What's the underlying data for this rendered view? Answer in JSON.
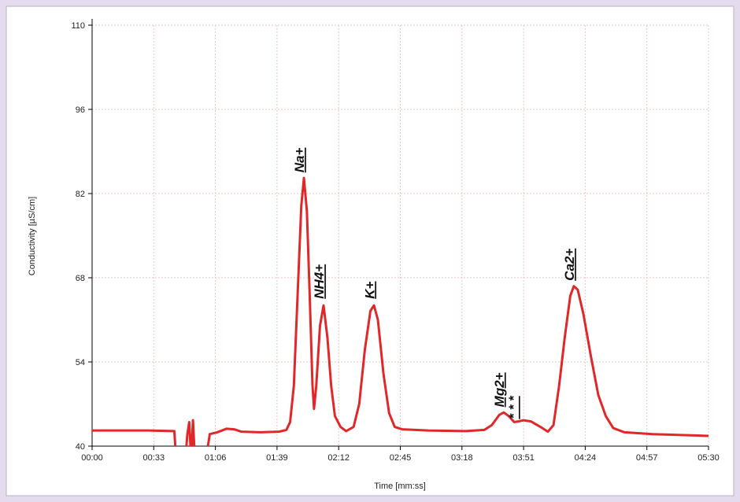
{
  "chart_data": {
    "type": "line",
    "x_label": "Time [mm:ss]",
    "y_label": "Conductivity [µS/cm]",
    "xlim": [
      0,
      330
    ],
    "ylim": [
      40,
      110
    ],
    "xticks": [
      {
        "value": 0,
        "label": "00:00"
      },
      {
        "value": 33,
        "label": "00:33"
      },
      {
        "value": 66,
        "label": "01:06"
      },
      {
        "value": 99,
        "label": "01:39"
      },
      {
        "value": 132,
        "label": "02:12"
      },
      {
        "value": 165,
        "label": "02:45"
      },
      {
        "value": 198,
        "label": "03:18"
      },
      {
        "value": 231,
        "label": "03:51"
      },
      {
        "value": 264,
        "label": "04:24"
      },
      {
        "value": 297,
        "label": "04:57"
      },
      {
        "value": 330,
        "label": "05:30"
      }
    ],
    "yticks": [
      40,
      54,
      68,
      82,
      96,
      110
    ],
    "grid": true,
    "x": [
      0,
      30,
      44,
      45,
      50,
      51,
      52,
      53,
      54,
      55,
      61,
      63,
      67,
      72,
      76,
      80,
      90,
      100,
      104,
      106,
      108,
      110,
      112,
      113.4,
      115,
      116.5,
      118,
      118.8,
      120,
      122,
      123.9,
      126,
      128,
      130,
      133,
      136,
      140,
      143,
      146,
      149,
      150.9,
      153,
      156,
      159,
      162,
      166,
      180,
      200,
      210,
      214,
      218,
      220.4,
      223,
      226,
      228,
      231,
      235,
      240,
      244,
      247,
      250,
      253,
      256,
      257.9,
      260,
      263,
      267,
      271,
      275,
      279,
      285,
      300,
      330
    ],
    "series": [
      {
        "color": "#e0282a",
        "values": [
          42.6,
          42.6,
          42.5,
          38,
          38,
          42,
          44.0,
          38,
          44.3,
          38,
          38,
          42.0,
          42.3,
          42.9,
          42.8,
          42.4,
          42.3,
          42.4,
          42.7,
          44,
          50,
          65,
          80,
          84.6,
          79,
          65,
          50,
          46.2,
          50,
          60,
          63.4,
          58,
          50,
          45,
          43.2,
          42.5,
          43.2,
          47,
          56,
          62.5,
          63.4,
          61,
          52,
          45.5,
          43.2,
          42.8,
          42.6,
          42.5,
          42.7,
          43.5,
          45.2,
          45.6,
          45,
          44,
          44.1,
          44.3,
          44.1,
          43.2,
          42.4,
          43.5,
          50,
          58,
          65,
          66.6,
          66,
          62,
          55,
          48.5,
          45,
          43,
          42.3,
          42,
          41.7
        ]
      }
    ],
    "annotations": [
      {
        "text": "Na+",
        "x": 113.4,
        "y": 85.5
      },
      {
        "text": "NH4+",
        "x": 124,
        "y": 64.5
      },
      {
        "text": "K+",
        "x": 151,
        "y": 64.5
      },
      {
        "text": "Mg2+",
        "x": 220.4,
        "y": 46.5
      },
      {
        "text": "* * *",
        "x": 228,
        "y": 44.5
      },
      {
        "text": "Ca2+",
        "x": 258,
        "y": 67.5
      }
    ]
  }
}
